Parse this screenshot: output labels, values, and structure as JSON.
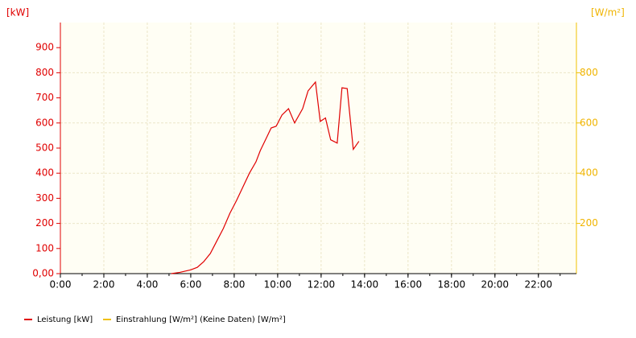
{
  "chart_data": {
    "type": "line",
    "y_unit": "[kW]",
    "y2_unit": "[W/m²]",
    "x": [
      5.1,
      5.5,
      6.0,
      6.3,
      6.6,
      6.9,
      7.2,
      7.5,
      7.8,
      8.1,
      8.4,
      8.7,
      9.0,
      9.2,
      9.48,
      9.7,
      9.93,
      10.2,
      10.5,
      10.78,
      11.15,
      11.4,
      11.74,
      11.96,
      12.2,
      12.44,
      12.74,
      12.96,
      13.2,
      13.48,
      13.74
    ],
    "series": [
      {
        "name": "Leistung [kW]",
        "color": "#e00000",
        "values": [
          0,
          5,
          15,
          25,
          48,
          80,
          130,
          180,
          240,
          290,
          345,
          400,
          445,
          490,
          540,
          580,
          587,
          632,
          657,
          600,
          657,
          728,
          763,
          606,
          620,
          533,
          520,
          740,
          737,
          495,
          527
        ]
      },
      {
        "name": "Einstrahlung [W/m²] (Keine Daten) [W/m²]",
        "color": "#f0c000",
        "axis": "y2",
        "values": [
          null,
          null,
          null,
          null,
          null,
          null,
          null,
          null,
          null,
          null,
          null,
          null,
          null,
          null,
          null,
          null,
          null,
          null,
          null,
          null,
          null,
          null,
          null,
          null,
          null,
          null,
          null,
          null,
          null,
          null,
          null
        ]
      }
    ],
    "xlim": [
      0,
      23.75
    ],
    "xticks": [
      {
        "value": 0,
        "label": "0:00"
      },
      {
        "value": 2,
        "label": "2:00"
      },
      {
        "value": 4,
        "label": "4:00"
      },
      {
        "value": 6,
        "label": "6:00"
      },
      {
        "value": 8,
        "label": "8:00"
      },
      {
        "value": 10,
        "label": "10:00"
      },
      {
        "value": 12,
        "label": "12:00"
      },
      {
        "value": 14,
        "label": "14:00"
      },
      {
        "value": 16,
        "label": "16:00"
      },
      {
        "value": 18,
        "label": "18:00"
      },
      {
        "value": 20,
        "label": "20:00"
      },
      {
        "value": 22,
        "label": "22:00"
      }
    ],
    "ylim": [
      0,
      1000
    ],
    "yticks": [
      {
        "value": 0,
        "label": "0,00"
      },
      100,
      200,
      300,
      400,
      500,
      600,
      700,
      800,
      900
    ],
    "y2lim": [
      0,
      1000
    ],
    "y2ticks": [
      200,
      400,
      600,
      800
    ],
    "grid": true
  }
}
